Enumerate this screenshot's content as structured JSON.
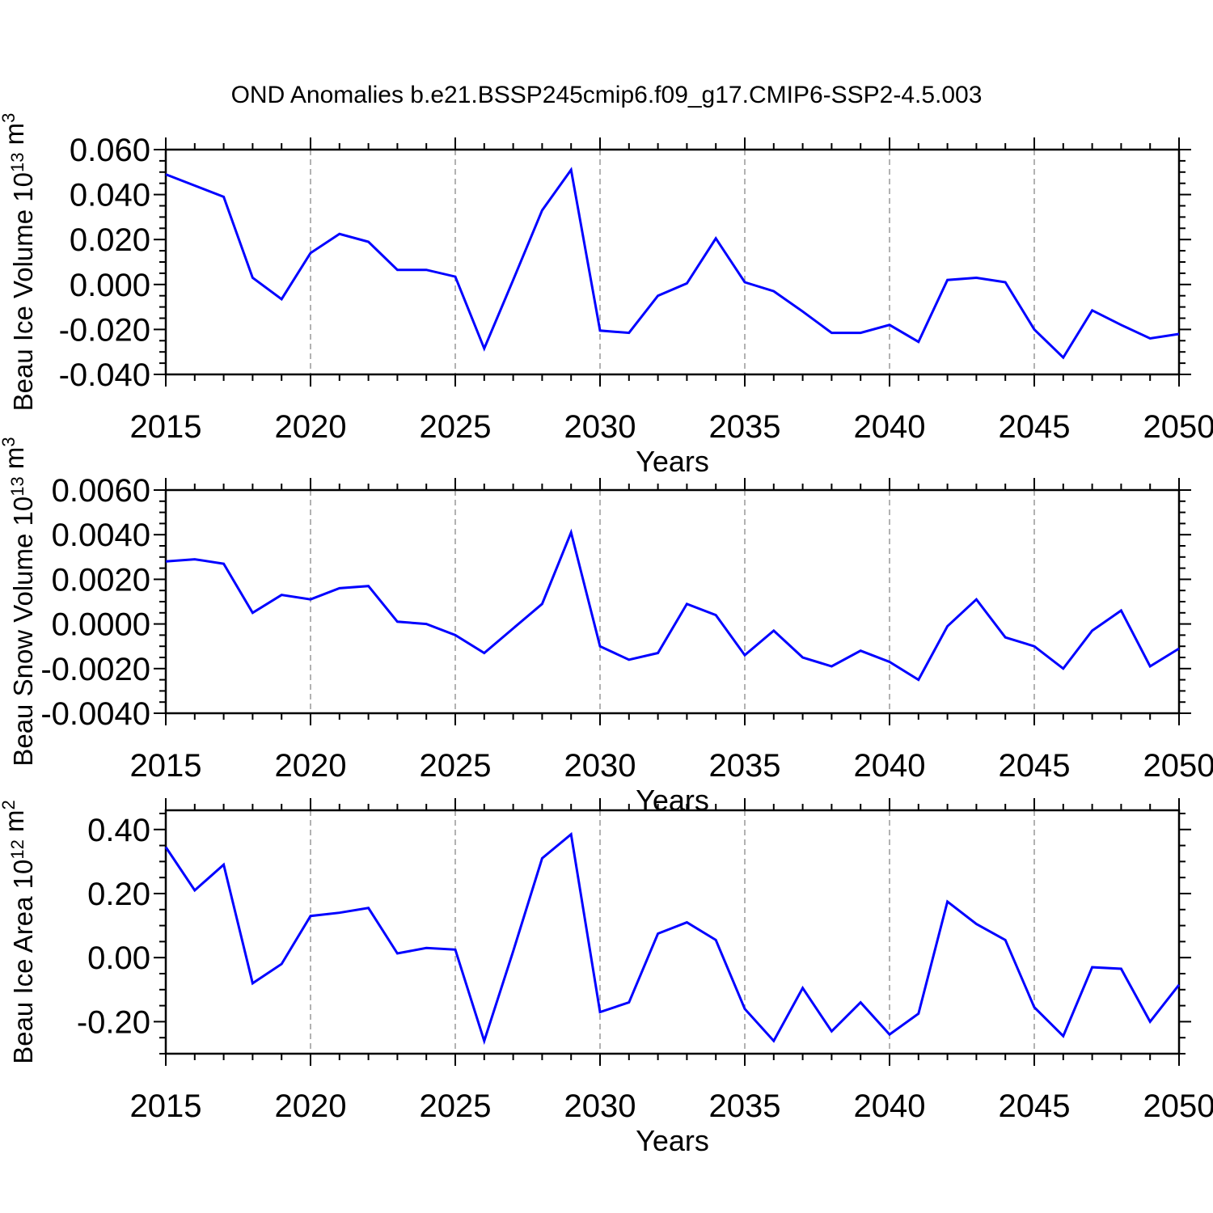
{
  "title": "OND Anomalies b.e21.BSSP245cmip6.f09_g17.CMIP6-SSP2-4.5.003",
  "colors": {
    "line": "#0000ff",
    "axis": "#000000",
    "grid": "#999999",
    "background": "#ffffff"
  },
  "xlabel": "Years",
  "years": [
    2015,
    2016,
    2017,
    2018,
    2019,
    2020,
    2021,
    2022,
    2023,
    2024,
    2025,
    2026,
    2027,
    2028,
    2029,
    2030,
    2031,
    2032,
    2033,
    2034,
    2035,
    2036,
    2037,
    2038,
    2039,
    2040,
    2041,
    2042,
    2043,
    2044,
    2045,
    2046,
    2047,
    2048,
    2049,
    2050
  ],
  "x_tick_labels": [
    "2015",
    "2020",
    "2025",
    "2030",
    "2035",
    "2040",
    "2045",
    "2050"
  ],
  "x_tick_values": [
    2015,
    2020,
    2025,
    2030,
    2035,
    2040,
    2045,
    2050
  ],
  "chart_data": [
    {
      "type": "line",
      "name": "ice-volume",
      "ylabel": "Beau Ice Volume 10^13 m^3",
      "ylabel_segments": [
        {
          "t": "Beau Ice Volume 10"
        },
        {
          "t": "13",
          "sup": true
        },
        {
          "t": " m"
        },
        {
          "t": "3",
          "sup": true
        }
      ],
      "xlabel": "Years",
      "ylim": [
        -0.04,
        0.06
      ],
      "y_tick_labels": [
        "0.060",
        "0.040",
        "0.020",
        "0.000",
        "-0.020",
        "-0.040"
      ],
      "y_tick_values": [
        0.06,
        0.04,
        0.02,
        0.0,
        -0.02,
        -0.04
      ],
      "y_minor_step": 0.005,
      "grid": "vertical-dashed",
      "legend": "none",
      "values": [
        0.049,
        0.044,
        0.039,
        0.003,
        -0.0065,
        0.014,
        0.0225,
        0.019,
        0.0065,
        0.0065,
        0.0035,
        -0.0285,
        0.002,
        0.033,
        0.051,
        -0.0205,
        -0.0215,
        -0.005,
        0.0005,
        0.0205,
        0.001,
        -0.003,
        -0.012,
        -0.0215,
        -0.0215,
        -0.018,
        -0.0255,
        0.002,
        0.003,
        0.001,
        -0.02,
        -0.0325,
        -0.0115,
        -0.018,
        -0.024,
        -0.022
      ]
    },
    {
      "type": "line",
      "name": "snow-volume",
      "ylabel": "Beau Snow Volume 10^13 m^3",
      "ylabel_segments": [
        {
          "t": "Beau Snow Volume 10"
        },
        {
          "t": "13",
          "sup": true
        },
        {
          "t": " m"
        },
        {
          "t": "3",
          "sup": true
        }
      ],
      "xlabel": "Years",
      "ylim": [
        -0.004,
        0.006
      ],
      "y_tick_labels": [
        "0.0060",
        "0.0040",
        "0.0020",
        "0.0000",
        "-0.0020",
        "-0.0040"
      ],
      "y_tick_values": [
        0.006,
        0.004,
        0.002,
        0.0,
        -0.002,
        -0.004
      ],
      "y_minor_step": 0.0005,
      "grid": "vertical-dashed",
      "legend": "none",
      "values": [
        0.0028,
        0.0029,
        0.0027,
        0.0005,
        0.0013,
        0.0011,
        0.0016,
        0.0017,
        0.0001,
        0.0,
        -0.0005,
        -0.0013,
        -0.0002,
        0.0009,
        0.0041,
        -0.001,
        -0.0016,
        -0.0013,
        0.0009,
        0.0004,
        -0.0014,
        -0.0003,
        -0.0015,
        -0.0019,
        -0.0012,
        -0.0017,
        -0.0025,
        -0.0001,
        0.0011,
        -0.0006,
        -0.001,
        -0.002,
        -0.0003,
        0.0006,
        -0.0019,
        -0.0011
      ]
    },
    {
      "type": "line",
      "name": "ice-area",
      "ylabel": "Beau Ice Area 10^12 m^2",
      "ylabel_segments": [
        {
          "t": "Beau Ice Area 10"
        },
        {
          "t": "12",
          "sup": true
        },
        {
          "t": " m"
        },
        {
          "t": "2",
          "sup": true
        }
      ],
      "xlabel": "Years",
      "ylim": [
        -0.3,
        0.46
      ],
      "y_tick_labels": [
        "0.40",
        "0.20",
        "0.00",
        "-0.20"
      ],
      "y_tick_values": [
        0.4,
        0.2,
        0.0,
        -0.2
      ],
      "y_minor_step": 0.05,
      "grid": "vertical-dashed",
      "legend": "none",
      "values": [
        0.345,
        0.21,
        0.29,
        -0.08,
        -0.02,
        0.13,
        0.14,
        0.155,
        0.013,
        0.03,
        0.025,
        -0.26,
        0.02,
        0.31,
        0.385,
        -0.17,
        -0.14,
        0.075,
        0.11,
        0.055,
        -0.16,
        -0.26,
        -0.095,
        -0.23,
        -0.14,
        -0.24,
        -0.175,
        0.175,
        0.105,
        0.055,
        -0.155,
        -0.245,
        -0.03,
        -0.035,
        -0.2,
        -0.085
      ]
    }
  ]
}
